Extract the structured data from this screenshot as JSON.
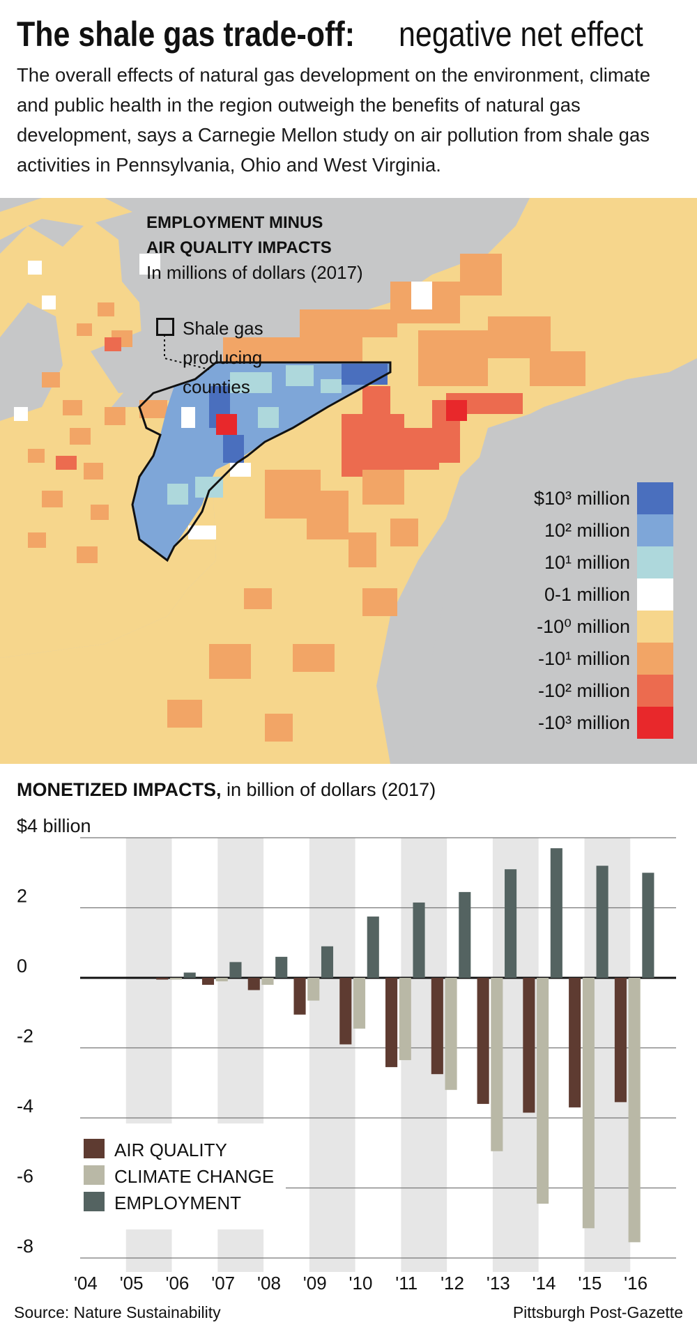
{
  "header": {
    "title_bold": "The shale gas trade-off:",
    "title_rest": "negative net effect",
    "intro": "The overall effects of natural gas development on the environment, climate and public health in the region outweigh the benefits of natural gas development, says a Carnegie Mellon study on air pollution from shale gas activities in Pennsylvania, Ohio and West Virginia."
  },
  "map": {
    "title_line1": "EMPLOYMENT MINUS",
    "title_line2": "AIR QUALITY IMPACTS",
    "subtitle": "In millions of dollars (2017)",
    "shale_label_line1": "Shale gas",
    "shale_label_line2": "producing",
    "shale_label_line3": "counties",
    "legend": [
      {
        "label": "$10³ million",
        "color": "#4a6fbe"
      },
      {
        "label": "10² million",
        "color": "#7ea6d8"
      },
      {
        "label": "10¹ million",
        "color": "#aed8dc"
      },
      {
        "label": "0-1 million",
        "color": "#ffffff"
      },
      {
        "label": "-10⁰ million",
        "color": "#f6d68c"
      },
      {
        "label": "-10¹ million",
        "color": "#f2a566"
      },
      {
        "label": "-10² million",
        "color": "#ec6b4f"
      },
      {
        "label": "-10³ million",
        "color": "#e8282b"
      }
    ]
  },
  "chart_header": {
    "bold": "MONETIZED IMPACTS,",
    "rest": "in billion of dollars (2017)"
  },
  "chart_data": {
    "type": "bar",
    "categories": [
      "'04",
      "'05",
      "'06",
      "'07",
      "'08",
      "'09",
      "'10",
      "'11",
      "'12",
      "'13",
      "'14",
      "'15",
      "'16"
    ],
    "series": [
      {
        "name": "AIR QUALITY",
        "values": [
          0,
          0,
          -0.05,
          -0.2,
          -0.35,
          -1.05,
          -1.9,
          -2.55,
          -2.75,
          -3.6,
          -3.85,
          -3.7,
          -3.55
        ]
      },
      {
        "name": "CLIMATE CHANGE",
        "values": [
          0,
          0,
          -0.05,
          -0.1,
          -0.2,
          -0.65,
          -1.45,
          -2.35,
          -3.2,
          -4.95,
          -6.45,
          -7.15,
          -7.55
        ]
      },
      {
        "name": "EMPLOYMENT",
        "values": [
          0,
          0,
          0.15,
          0.45,
          0.6,
          0.9,
          1.75,
          2.15,
          2.45,
          3.1,
          3.7,
          3.2,
          3.0
        ]
      }
    ],
    "colors": [
      "#5e3b31",
      "#b9b8a6",
      "#546361"
    ],
    "ytick_labels": [
      "$4 billion",
      "2",
      "0",
      "-2",
      "-4",
      "-6",
      "-8"
    ],
    "yticks": [
      4,
      2,
      0,
      -2,
      -4,
      -6,
      -8
    ],
    "ylim": [
      -8.2,
      4.3
    ],
    "grid": true,
    "legend_position": "bottom-left"
  },
  "footer": {
    "source": "Source: Nature Sustainability",
    "credit": "Pittsburgh Post-Gazette"
  }
}
